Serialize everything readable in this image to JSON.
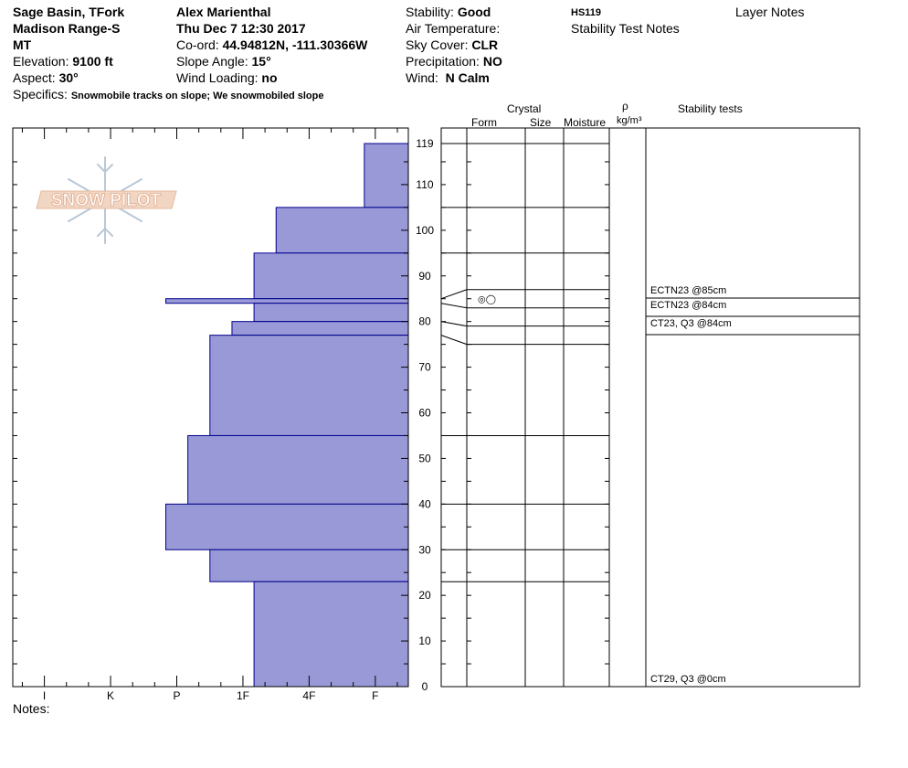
{
  "header": {
    "location_line1": "Sage Basin, TFork",
    "location_line2": "Madison Range-S",
    "location_line3": "MT",
    "elevation_label": "Elevation:",
    "elevation_value": "9100 ft",
    "aspect_label": "Aspect:",
    "aspect_value": "30°",
    "specifics_label": "Specifics:",
    "specifics_value": "Snowmobile tracks on slope; We snowmobiled slope",
    "observer": "Alex Marienthal",
    "datetime": "Thu Dec 7 12:30 2017",
    "coord_label": "Co-ord:",
    "coord_value": "44.94812N, -111.30366W",
    "slope_label": "Slope Angle:",
    "slope_value": "15°",
    "wind_loading_label": "Wind Loading:",
    "wind_loading_value": "no",
    "stability_label": "Stability:",
    "stability_value": "Good",
    "air_temp_label": "Air Temperature:",
    "sky_label": "Sky Cover:",
    "sky_value": "CLR",
    "precip_label": "Precipitation:",
    "precip_value": "NO",
    "wind_label": "Wind:",
    "wind_value": "N Calm",
    "hs": "HS119",
    "stability_test_notes": "Stability Test Notes",
    "layer_notes": "Layer Notes"
  },
  "columns": {
    "crystal": "Crystal",
    "form": "Form",
    "size": "Size",
    "moisture": "Moisture",
    "rho": "ρ",
    "density_unit": "kg/m³",
    "stability_tests": "Stability tests"
  },
  "logo_text": "SNOW PILOT",
  "notes_label": "Notes:",
  "colors": {
    "hardness_fill": "#9999d8",
    "hardness_stroke": "#00008b"
  },
  "chart_data": {
    "type": "bar",
    "orientation": "horizontal",
    "title": "",
    "xlabel": "",
    "ylabel": "",
    "ylim": [
      0,
      119
    ],
    "y_ticks": [
      0,
      10,
      20,
      30,
      40,
      50,
      60,
      70,
      80,
      90,
      100,
      110,
      119
    ],
    "hardness_levels": [
      "F-",
      "F",
      "F+",
      "4F-",
      "4F",
      "4F+",
      "1F-",
      "1F",
      "1F+",
      "P-",
      "P",
      "P+",
      "K-",
      "K",
      "K+",
      "I-",
      "I",
      "I+"
    ],
    "x_tick_labels": [
      "I",
      "K",
      "P",
      "1F",
      "4F",
      "F"
    ],
    "layers": [
      {
        "top": 119,
        "bottom": 105,
        "hardness": "F"
      },
      {
        "top": 105,
        "bottom": 95,
        "hardness": "4F+"
      },
      {
        "top": 95,
        "bottom": 85,
        "hardness": "1F-"
      },
      {
        "top": 85,
        "bottom": 84,
        "hardness": "P"
      },
      {
        "top": 84,
        "bottom": 80,
        "hardness": "1F-"
      },
      {
        "top": 80,
        "bottom": 77,
        "hardness": "1F"
      },
      {
        "top": 77,
        "bottom": 55,
        "hardness": "1F+"
      },
      {
        "top": 55,
        "bottom": 40,
        "hardness": "P-"
      },
      {
        "top": 40,
        "bottom": 30,
        "hardness": "P"
      },
      {
        "top": 30,
        "bottom": 23,
        "hardness": "1F+"
      },
      {
        "top": 23,
        "bottom": 0,
        "hardness": "1F-"
      }
    ],
    "grain_form": {
      "top": 85,
      "bottom": 84,
      "symbol": "◎◯"
    },
    "stability_tests": [
      {
        "label": "ECTN23 @85cm",
        "depth": 85
      },
      {
        "label": "ECTN23 @84cm",
        "depth": 84
      },
      {
        "label": "CT23, Q3 @84cm",
        "depth": 84
      },
      {
        "label": "CT29, Q3 @0cm",
        "depth": 0
      }
    ]
  }
}
